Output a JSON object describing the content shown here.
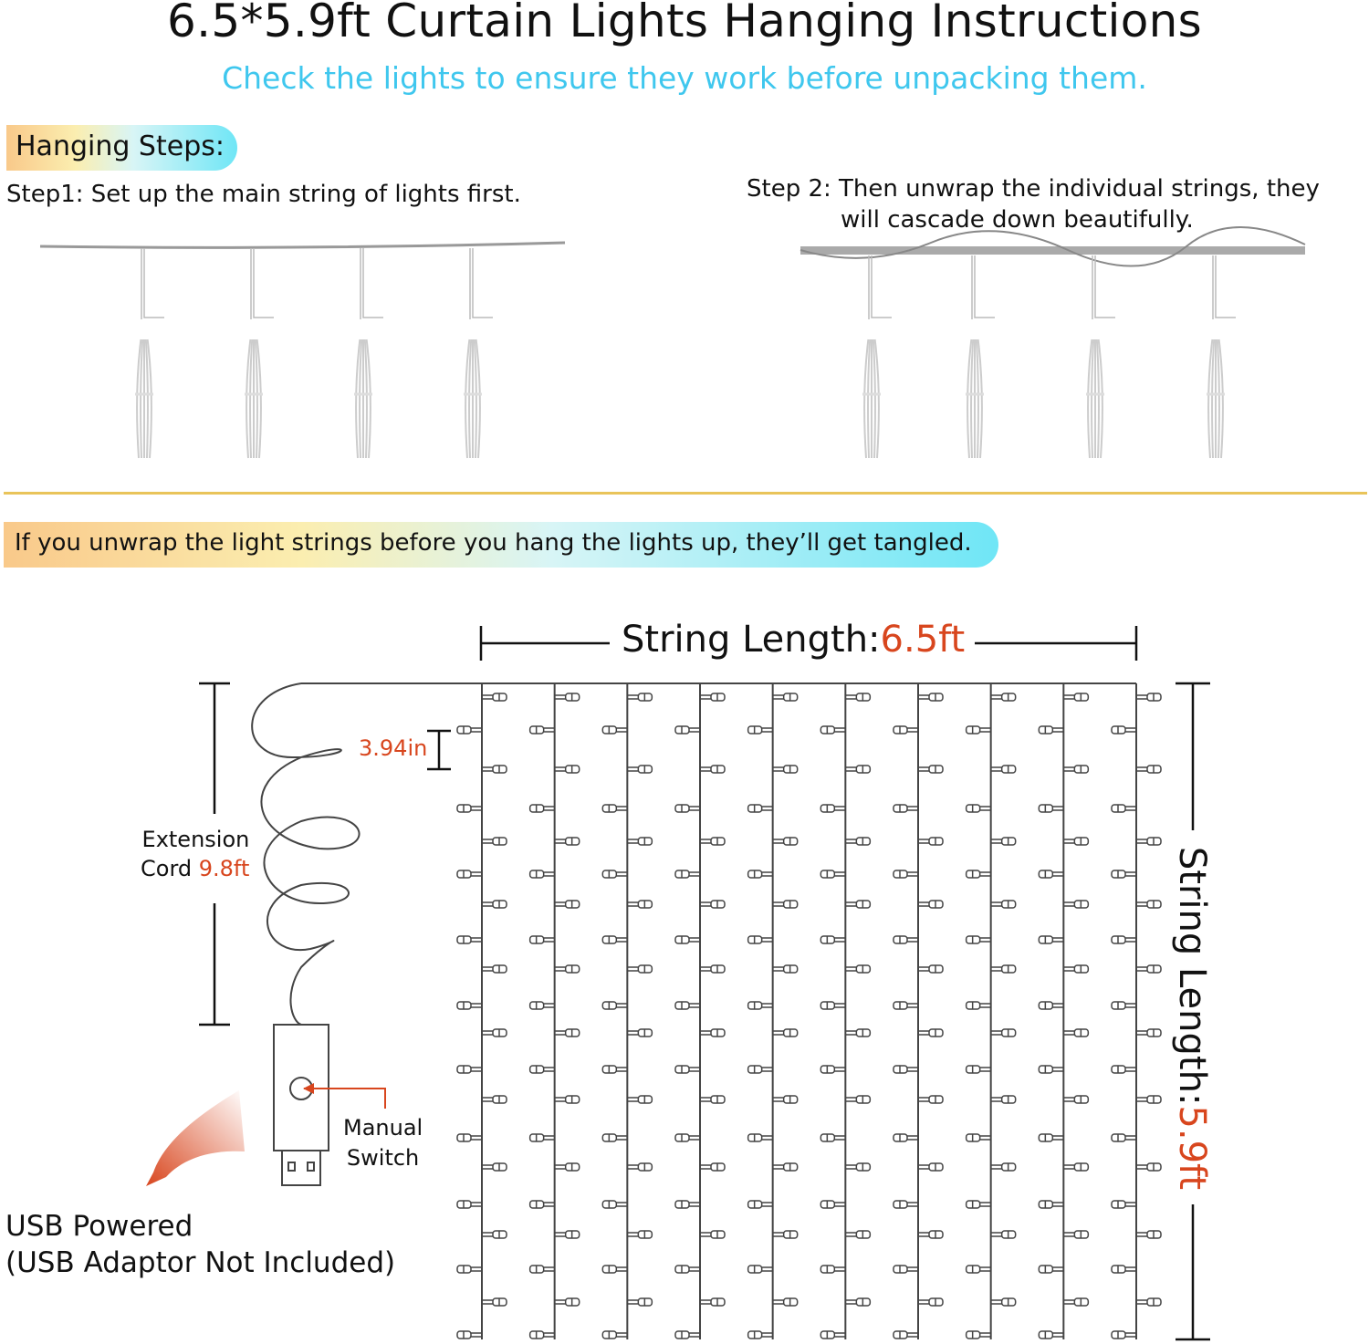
{
  "header": {
    "title": "6.5*5.9ft Curtain Lights Hanging Instructions",
    "subtitle": "Check the lights to ensure they work before unpacking them."
  },
  "steps": {
    "heading": "Hanging Steps:",
    "step1": "Step1: Set up the main string of lights first.",
    "step2_line1": "Step 2: Then unwrap the individual strings, they",
    "step2_line2": "will cascade down beautifully."
  },
  "warning": "If you unwrap the light strings before you hang the lights up, they’ll get tangled.",
  "diagram": {
    "string_length_label": "String Length:",
    "string_length_value": "6.5ft",
    "drop_length_label": "String Length:",
    "drop_length_value": "5.9ft",
    "bulb_spacing": "3.94in",
    "extension_label_1": "Extension",
    "extension_label_2": "Cord ",
    "extension_value": "9.8ft",
    "switch_label_1": "Manual",
    "switch_label_2": "Switch",
    "usb_line1": "USB Powered",
    "usb_line2": "(USB Adaptor Not Included)",
    "strands": 10,
    "accent_color": "#d8461e",
    "highlight_colors": [
      "#f9c98a",
      "#fbeeb0",
      "#6fe6f6"
    ],
    "subtitle_color": "#3fc7ee",
    "divider_color": "#e9c45a"
  }
}
